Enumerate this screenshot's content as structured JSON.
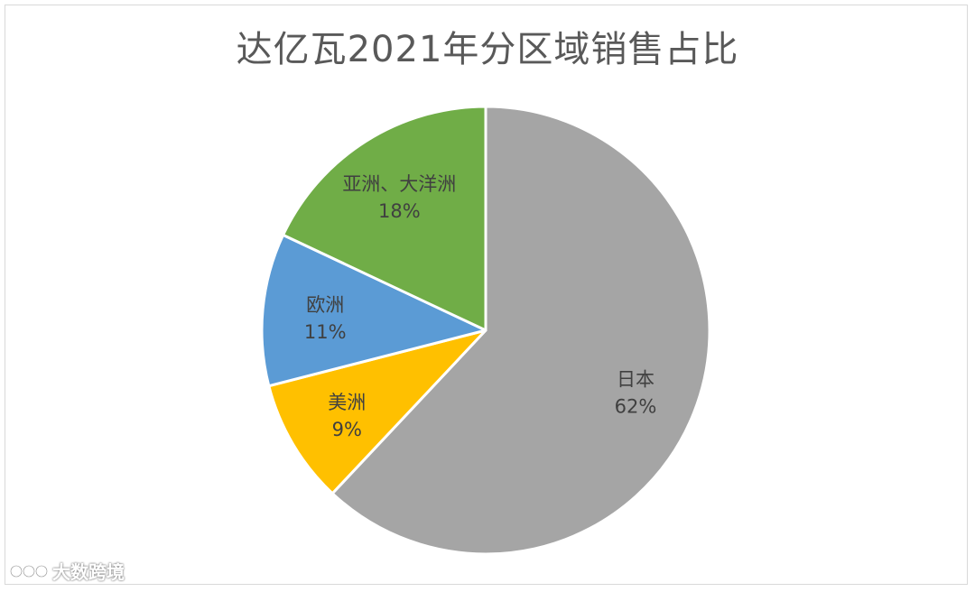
{
  "chart_data": {
    "type": "pie",
    "title": "达亿瓦2021年分区域销售占比",
    "slices": [
      {
        "label": "日本",
        "value": 62,
        "value_label": "62%",
        "color": "#a5a5a5"
      },
      {
        "label": "美洲",
        "value": 9,
        "value_label": "9%",
        "color": "#ffc000"
      },
      {
        "label": "欧洲",
        "value": 11,
        "value_label": "11%",
        "color": "#5b9bd5"
      },
      {
        "label": "亚洲、大洋洲",
        "value": 18,
        "value_label": "18%",
        "color": "#70ad47"
      }
    ],
    "start": "12 o'clock",
    "direction": "clockwise"
  },
  "watermark": {
    "text": "大数跨境"
  }
}
